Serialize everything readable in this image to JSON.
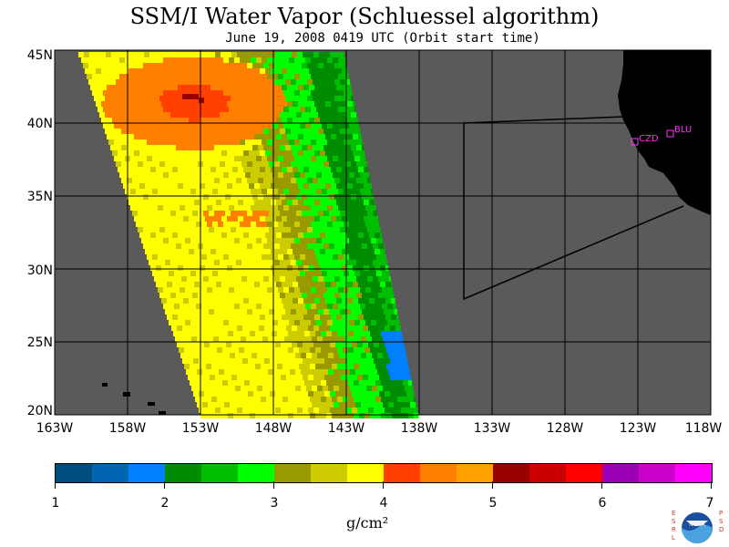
{
  "title": "SSM/I Water Vapor (Schluessel algorithm)",
  "subtitle": "June 19, 2008  0419 UTC  (Orbit start time)",
  "map": {
    "lat_labels": [
      "45N",
      "40N",
      "35N",
      "30N",
      "25N",
      "20N"
    ],
    "lon_labels": [
      "163W",
      "158W",
      "153W",
      "148W",
      "143W",
      "138W",
      "133W",
      "128W",
      "123W",
      "118W"
    ],
    "ocean_color": "#5a5a5a",
    "land_color": "#000000",
    "stations": [
      {
        "code": "CZD",
        "lat": 38.6,
        "lon": -123.2
      },
      {
        "code": "BLU",
        "lat": 39.3,
        "lon": -120.9
      }
    ]
  },
  "colorbar": {
    "colors": [
      "#004d80",
      "#0066b3",
      "#0080ff",
      "#008c00",
      "#00bf00",
      "#00ff00",
      "#999900",
      "#cccc00",
      "#ffff00",
      "#ff4000",
      "#ff8000",
      "#ffa000",
      "#990000",
      "#cc0000",
      "#ff0000",
      "#9900b3",
      "#cc00cc",
      "#ff00ff"
    ],
    "labels": [
      "1",
      "2",
      "3",
      "4",
      "5",
      "6",
      "7"
    ],
    "units": "g/cm²"
  },
  "logo": {
    "left_text": "ESRL",
    "right_text": "PSD",
    "name": "NOAA",
    "icon": "noaa-logo-icon"
  }
}
